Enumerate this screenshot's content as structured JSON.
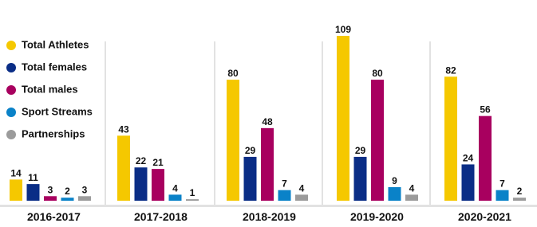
{
  "chart_data": {
    "type": "bar",
    "categories": [
      "2016-2017",
      "2017-2018",
      "2018-2019",
      "2019-2020",
      "2020-2021"
    ],
    "series": [
      {
        "name": "Total Athletes",
        "color": "#f5c800",
        "values": [
          14,
          43,
          80,
          109,
          82
        ]
      },
      {
        "name": "Total females",
        "color": "#0a2d86",
        "values": [
          11,
          22,
          29,
          29,
          24
        ]
      },
      {
        "name": "Total males",
        "color": "#a8005f",
        "values": [
          3,
          21,
          48,
          80,
          56
        ]
      },
      {
        "name": "Sport Streams",
        "color": "#0a82c8",
        "values": [
          2,
          4,
          7,
          9,
          7
        ]
      },
      {
        "name": "Partnerships",
        "color": "#9b9b9b",
        "values": [
          3,
          1,
          4,
          4,
          2
        ]
      }
    ],
    "legend": "upper left"
  }
}
